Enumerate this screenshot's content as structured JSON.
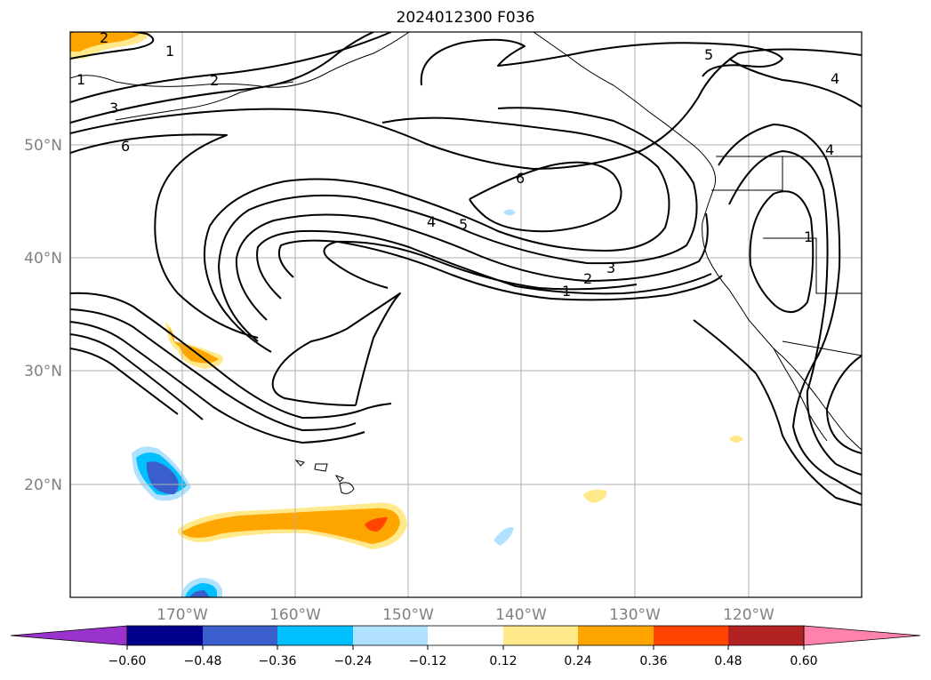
{
  "title": "2024012300 F036",
  "longitude_labels": [
    "170°W",
    "160°W",
    "150°W",
    "140°W",
    "130°W",
    "120°W"
  ],
  "latitude_labels": [
    "50°N",
    "40°N",
    "30°N",
    "20°N"
  ],
  "contour_labels": [
    "2",
    "1",
    "1",
    "2",
    "3",
    "6",
    "5",
    "4",
    "4",
    "6",
    "4",
    "5",
    "3",
    "2",
    "1",
    "1"
  ],
  "colorbar": {
    "ticks": [
      "−0.60",
      "−0.48",
      "−0.36",
      "−0.24",
      "−0.12",
      "0.12",
      "0.24",
      "0.36",
      "0.48",
      "0.60"
    ],
    "colors": [
      "#9933cc",
      "#00008b",
      "#3a5fcd",
      "#00bfff",
      "#b0e2ff",
      "#ffffff",
      "#ffe98a",
      "#ffa500",
      "#ff4500",
      "#b22222",
      "#ff82ab"
    ]
  },
  "legend_colors": {
    "grid": "#b0b0b0",
    "axis_text": "#808080"
  }
}
